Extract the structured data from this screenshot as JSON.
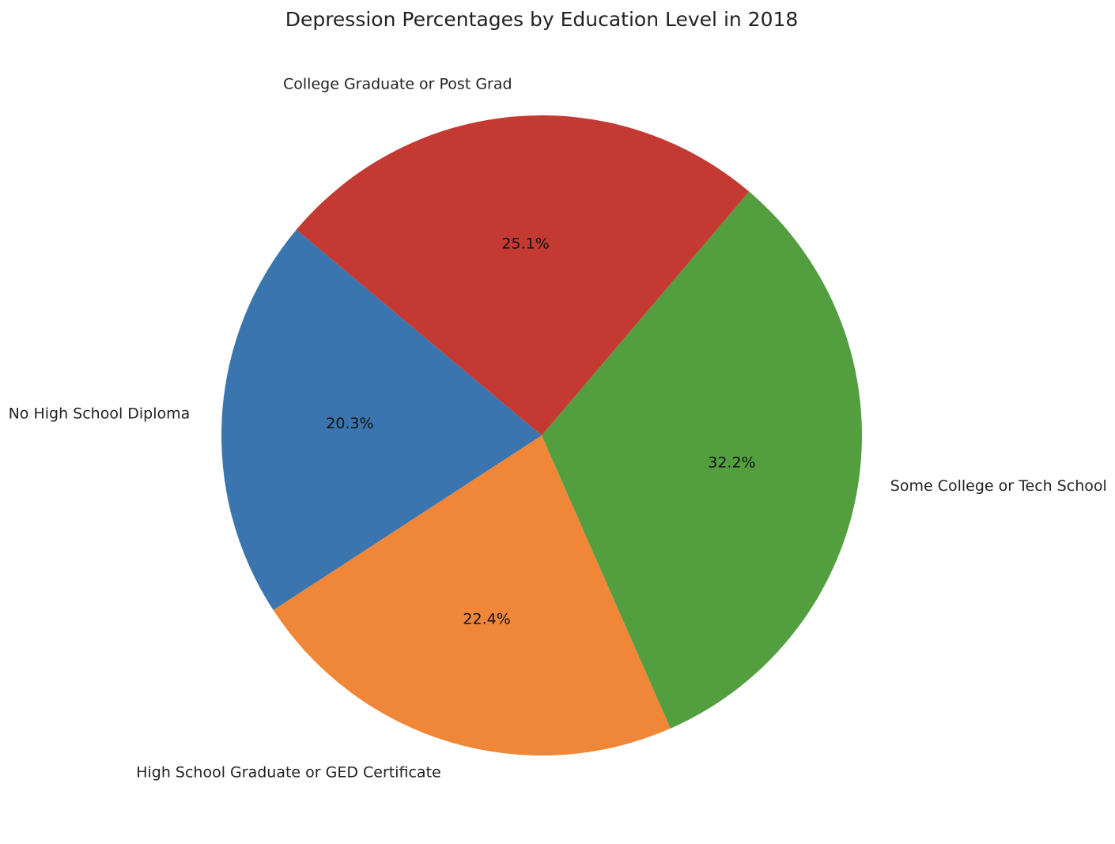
{
  "chart_data": {
    "type": "pie",
    "title": "Depression Percentages by Education Level in 2018",
    "start_angle_deg": 140,
    "direction": "counterclockwise",
    "slices": [
      {
        "label": "No High School Diploma",
        "value": 20.3,
        "pct_label": "20.3%",
        "color": "#3a75af"
      },
      {
        "label": "High School Graduate or GED Certificate",
        "value": 22.4,
        "pct_label": "22.4%",
        "color": "#f08637"
      },
      {
        "label": "Some College or Tech School",
        "value": 32.2,
        "pct_label": "32.2%",
        "color": "#539f40"
      },
      {
        "label": "College Graduate or Post Grad",
        "value": 25.1,
        "pct_label": "25.1%",
        "color": "#c43a33"
      }
    ]
  }
}
